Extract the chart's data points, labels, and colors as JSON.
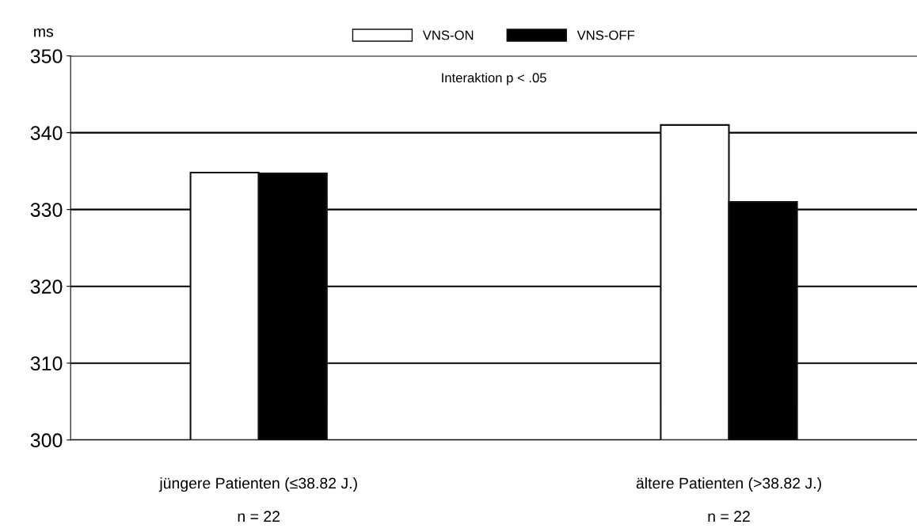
{
  "chart_data": {
    "type": "bar",
    "ylabel": "ms",
    "categories": [
      "jüngere Patienten (≤38.82 J.)\n\nn = 22",
      "ältere Patienten (>38.82 J.)\n\nn = 22"
    ],
    "series": [
      {
        "name": "VNS-ON",
        "color": "#ffffff",
        "values": [
          334.8,
          341.0
        ]
      },
      {
        "name": "VNS-OFF",
        "color": "#000000",
        "values": [
          334.7,
          331.0
        ]
      }
    ],
    "ylim": [
      300,
      350
    ],
    "yticks": [
      300,
      310,
      320,
      330,
      340,
      350
    ],
    "grid": "y",
    "legend": "top",
    "annotations": [
      "Interaktion p < .05"
    ]
  }
}
